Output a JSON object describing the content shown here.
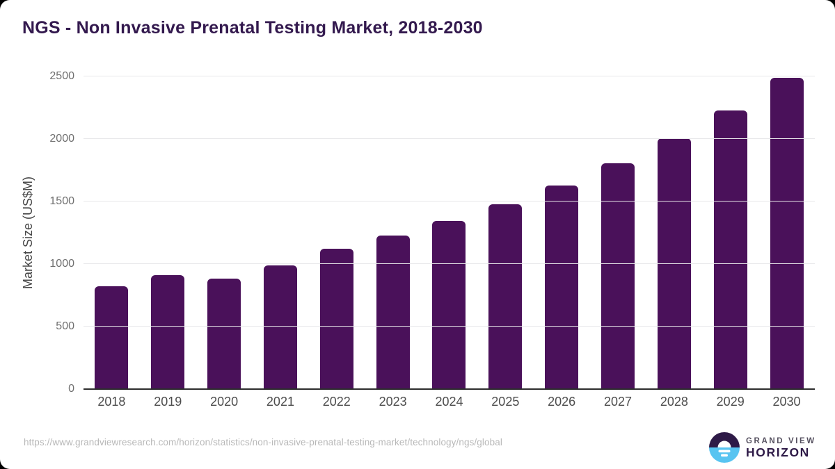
{
  "title": "NGS - Non Invasive Prenatal Testing Market, 2018-2030",
  "source_url": "https://www.grandviewresearch.com/horizon/statistics/non-invasive-prenatal-testing-market/technology/ngs/global",
  "branding": {
    "logo_icon": "sunrise-horizon-icon",
    "line1": "GRAND VIEW",
    "line2": "HORIZON"
  },
  "colors": {
    "bar": "#4a115a",
    "title": "#33194e",
    "grid": "#e8e8ea",
    "axis_line": "#2d2d2d",
    "y_tick": "#6f6f6f",
    "x_tick": "#4d4d4d",
    "axis_title": "#464646",
    "url": "#b8b8b8",
    "logo_dark": "#2e1a47",
    "logo_blue": "#58c4f1"
  },
  "chart_data": {
    "type": "bar",
    "categories": [
      "2018",
      "2019",
      "2020",
      "2021",
      "2022",
      "2023",
      "2024",
      "2025",
      "2026",
      "2027",
      "2028",
      "2029",
      "2030"
    ],
    "values": [
      825,
      910,
      885,
      990,
      1120,
      1230,
      1345,
      1480,
      1630,
      1805,
      2005,
      2230,
      2490
    ],
    "title": "NGS - Non Invasive Prenatal Testing Market, 2018-2030",
    "xlabel": "",
    "ylabel": "Market Size (US$M)",
    "ylim": [
      0,
      2500
    ],
    "yticks": [
      0,
      500,
      1000,
      1500,
      2000,
      2500
    ],
    "grid": "horizontal-only",
    "legend": "none",
    "bar_color": "#4a115a"
  }
}
